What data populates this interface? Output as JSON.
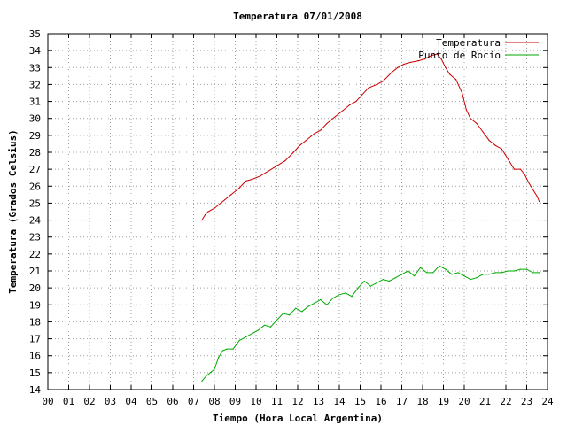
{
  "chart_data": {
    "type": "line",
    "title": "Temperatura 07/01/2008",
    "xlabel": "Tiempo (Hora Local Argentina)",
    "ylabel": "Temperatura (Grados Celsius)",
    "xlim": [
      0,
      24
    ],
    "ylim": [
      14,
      35
    ],
    "x_ticks": [
      "00",
      "01",
      "02",
      "03",
      "04",
      "05",
      "06",
      "07",
      "08",
      "09",
      "10",
      "11",
      "12",
      "13",
      "14",
      "15",
      "16",
      "17",
      "18",
      "19",
      "20",
      "21",
      "22",
      "23",
      "24"
    ],
    "y_ticks": [
      "14",
      "15",
      "16",
      "17",
      "18",
      "19",
      "20",
      "21",
      "22",
      "23",
      "24",
      "25",
      "26",
      "27",
      "28",
      "29",
      "30",
      "31",
      "32",
      "33",
      "34",
      "35"
    ],
    "grid": true,
    "legend_position": "top-right",
    "series": [
      {
        "name": "Temperatura",
        "color": "#cc0000",
        "x": [
          7.4,
          7.55,
          7.7,
          8.0,
          8.3,
          8.5,
          8.8,
          9.2,
          9.5,
          9.8,
          10.2,
          10.6,
          11.0,
          11.4,
          11.8,
          12.1,
          12.4,
          12.8,
          13.1,
          13.4,
          13.8,
          14.1,
          14.5,
          14.8,
          15.1,
          15.4,
          15.8,
          16.1,
          16.5,
          16.8,
          17.1,
          17.4,
          17.8,
          18.1,
          18.4,
          18.7,
          18.9,
          19.1,
          19.3,
          19.6,
          19.9,
          20.1,
          20.3,
          20.6,
          20.9,
          21.2,
          21.5,
          21.8,
          22.1,
          22.4,
          22.7,
          22.9,
          23.1,
          23.3,
          23.5,
          23.6
        ],
        "y": [
          24.0,
          24.3,
          24.5,
          24.7,
          25.0,
          25.2,
          25.5,
          25.9,
          26.3,
          26.4,
          26.6,
          26.9,
          27.2,
          27.5,
          28.0,
          28.4,
          28.7,
          29.1,
          29.3,
          29.7,
          30.1,
          30.4,
          30.8,
          31.0,
          31.4,
          31.8,
          32.0,
          32.2,
          32.7,
          33.0,
          33.2,
          33.3,
          33.4,
          33.5,
          33.7,
          33.8,
          33.5,
          33.0,
          32.6,
          32.3,
          31.5,
          30.5,
          30.0,
          29.7,
          29.2,
          28.7,
          28.4,
          28.2,
          27.6,
          27.0,
          27.0,
          26.7,
          26.2,
          25.8,
          25.4,
          25.1
        ]
      },
      {
        "name": "Punto de Rocío",
        "color": "#00aa00",
        "x": [
          7.4,
          7.6,
          7.8,
          8.0,
          8.2,
          8.4,
          8.6,
          8.9,
          9.2,
          9.5,
          9.8,
          10.1,
          10.4,
          10.7,
          11.0,
          11.3,
          11.6,
          11.9,
          12.2,
          12.5,
          12.8,
          13.1,
          13.4,
          13.7,
          14.0,
          14.3,
          14.6,
          14.9,
          15.2,
          15.5,
          15.8,
          16.1,
          16.4,
          16.7,
          17.0,
          17.3,
          17.6,
          17.9,
          18.2,
          18.5,
          18.8,
          19.1,
          19.4,
          19.7,
          20.0,
          20.3,
          20.6,
          20.9,
          21.2,
          21.5,
          21.8,
          22.1,
          22.4,
          22.7,
          23.0,
          23.3,
          23.6
        ],
        "y": [
          14.5,
          14.8,
          15.0,
          15.2,
          15.9,
          16.3,
          16.4,
          16.4,
          16.9,
          17.1,
          17.3,
          17.5,
          17.8,
          17.7,
          18.1,
          18.5,
          18.4,
          18.8,
          18.6,
          18.9,
          19.1,
          19.3,
          19.0,
          19.4,
          19.6,
          19.7,
          19.5,
          20.0,
          20.4,
          20.1,
          20.3,
          20.5,
          20.4,
          20.6,
          20.8,
          21.0,
          20.7,
          21.2,
          20.9,
          20.9,
          21.3,
          21.1,
          20.8,
          20.9,
          20.7,
          20.5,
          20.6,
          20.8,
          20.8,
          20.9,
          20.9,
          21.0,
          21.0,
          21.1,
          21.1,
          20.9,
          20.9
        ]
      }
    ]
  }
}
